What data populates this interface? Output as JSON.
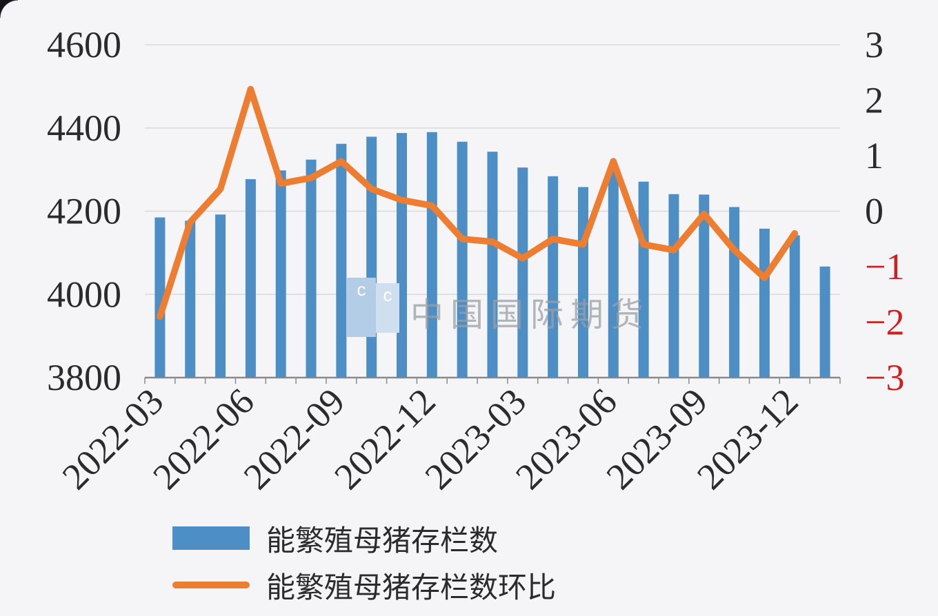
{
  "colors": {
    "background": "#f5f5f7",
    "bar": "#4d8fc4",
    "line": "#ed7d31",
    "grid": "#d9d9d9",
    "axis": "#8a8a8a",
    "text": "#2b2b2b",
    "negative_tick": "#cf2020",
    "watermark_square": "#b4cde6",
    "watermark_square_light": "#cfdff0",
    "watermark_text": "#9aa0a6"
  },
  "watermark": {
    "text": "中国国际期货",
    "logo_letters": [
      "c",
      "c"
    ]
  },
  "legend": {
    "items": [
      {
        "label": "能繁殖母猪存栏数",
        "type": "bar"
      },
      {
        "label": "能繁殖母猪存栏数环比",
        "type": "line"
      }
    ]
  },
  "chart_data": {
    "type": "bar",
    "title": "",
    "categories": [
      "2022-03",
      "2022-04",
      "2022-05",
      "2022-06",
      "2022-07",
      "2022-08",
      "2022-09",
      "2022-10",
      "2022-11",
      "2022-12",
      "2023-01",
      "2023-02",
      "2023-03",
      "2023-04",
      "2023-05",
      "2023-06",
      "2023-07",
      "2023-08",
      "2023-09",
      "2023-10",
      "2023-11",
      "2023-12",
      "2024-01"
    ],
    "x_tick_labels": [
      "2022-03",
      "2022-06",
      "2022-09",
      "2022-12",
      "2023-03",
      "2023-06",
      "2023-09",
      "2023-12"
    ],
    "x_tick_indices": [
      0,
      3,
      6,
      9,
      12,
      15,
      18,
      21
    ],
    "series": [
      {
        "name": "能繁殖母猪存栏数",
        "type": "bar",
        "axis": "left",
        "color": "#4d8fc4",
        "values": [
          4185,
          4177,
          4192,
          4277,
          4298,
          4324,
          4362,
          4379,
          4388,
          4390,
          4367,
          4343,
          4305,
          4284,
          4258,
          4296,
          4271,
          4241,
          4240,
          4210,
          4158,
          4142,
          4067
        ]
      },
      {
        "name": "能繁殖母猪存栏数环比",
        "type": "line",
        "axis": "right",
        "color": "#ed7d31",
        "values": [
          -1.9,
          -0.2,
          0.4,
          2.2,
          0.5,
          0.6,
          0.9,
          0.4,
          0.2,
          0.1,
          -0.5,
          -0.55,
          -0.85,
          -0.5,
          -0.6,
          0.9,
          -0.6,
          -0.7,
          -0.05,
          -0.7,
          -1.2,
          -0.4,
          null
        ]
      }
    ],
    "left_axis": {
      "min": 3800,
      "max": 4600,
      "ticks": [
        3800,
        4000,
        4200,
        4400,
        4600
      ]
    },
    "right_axis": {
      "min": -3,
      "max": 3,
      "ticks": [
        3,
        2,
        1,
        0,
        -1,
        -2,
        -3
      ]
    },
    "grid": true,
    "legend_position": "bottom-left"
  }
}
